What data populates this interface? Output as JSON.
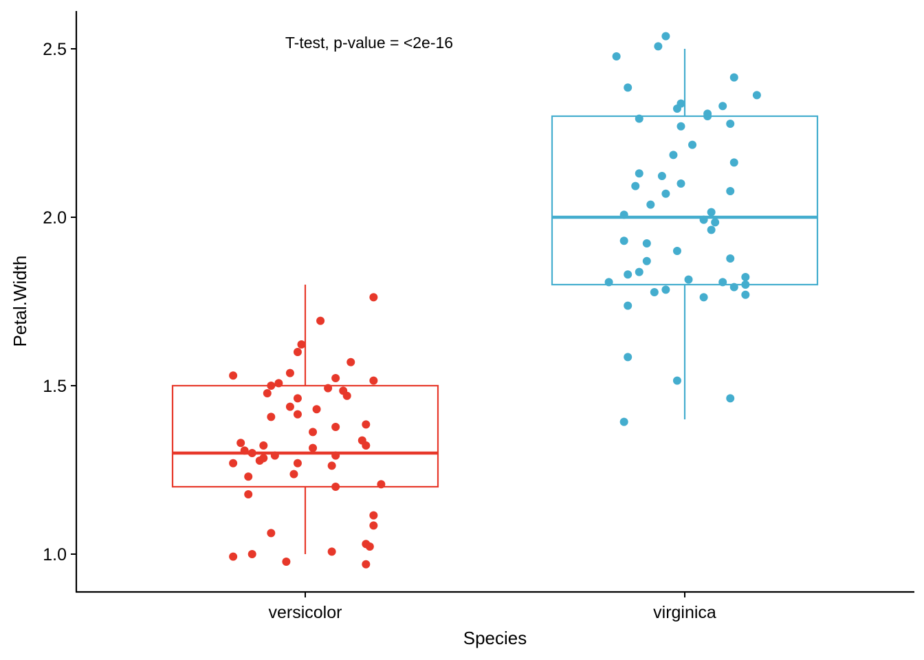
{
  "chart_data": {
    "type": "box",
    "title": "",
    "xlabel": "Species",
    "ylabel": "Petal.Width",
    "categories": [
      "versicolor",
      "virginica"
    ],
    "ylim": [
      0.9,
      2.6
    ],
    "yticks": [
      1.0,
      1.5,
      2.0,
      2.5
    ],
    "ytick_labels": [
      "1.0",
      "1.5",
      "2.0",
      "2.5"
    ],
    "grid": false,
    "legend": "none",
    "annotation": "T-test, p-value = <2e-16",
    "series": [
      {
        "category": "versicolor",
        "color": "#E7382A",
        "box": {
          "min": 1.0,
          "q1": 1.2,
          "median": 1.3,
          "q3": 1.5,
          "max": 1.8
        },
        "points": [
          {
            "jitter": 0.18,
            "y": 1.8
          },
          {
            "jitter": 0.04,
            "y": 1.7
          },
          {
            "jitter": -0.01,
            "y": 1.6
          },
          {
            "jitter": 0.12,
            "y": 1.6
          },
          {
            "jitter": -0.02,
            "y": 1.6
          },
          {
            "jitter": -0.19,
            "y": 1.5
          },
          {
            "jitter": -0.1,
            "y": 1.5
          },
          {
            "jitter": -0.07,
            "y": 1.5
          },
          {
            "jitter": -0.04,
            "y": 1.5
          },
          {
            "jitter": 0.1,
            "y": 1.5
          },
          {
            "jitter": 0.18,
            "y": 1.5
          },
          {
            "jitter": -0.02,
            "y": 1.5
          },
          {
            "jitter": 0.06,
            "y": 1.5
          },
          {
            "jitter": 0.08,
            "y": 1.5
          },
          {
            "jitter": 0.11,
            "y": 1.5
          },
          {
            "jitter": -0.09,
            "y": 1.5
          },
          {
            "jitter": 0.03,
            "y": 1.4
          },
          {
            "jitter": 0.08,
            "y": 1.4
          },
          {
            "jitter": -0.09,
            "y": 1.4
          },
          {
            "jitter": -0.04,
            "y": 1.4
          },
          {
            "jitter": 0.16,
            "y": 1.4
          },
          {
            "jitter": -0.02,
            "y": 1.4
          },
          {
            "jitter": 0.02,
            "y": 1.4
          },
          {
            "jitter": -0.08,
            "y": 1.3
          },
          {
            "jitter": 0.16,
            "y": 1.3
          },
          {
            "jitter": -0.19,
            "y": 1.3
          },
          {
            "jitter": -0.14,
            "y": 1.3
          },
          {
            "jitter": -0.17,
            "y": 1.3
          },
          {
            "jitter": -0.12,
            "y": 1.3
          },
          {
            "jitter": -0.16,
            "y": 1.3
          },
          {
            "jitter": 0.15,
            "y": 1.3
          },
          {
            "jitter": -0.11,
            "y": 1.3
          },
          {
            "jitter": 0.02,
            "y": 1.3
          },
          {
            "jitter": 0.07,
            "y": 1.3
          },
          {
            "jitter": 0.08,
            "y": 1.3
          },
          {
            "jitter": -0.11,
            "y": 1.3
          },
          {
            "jitter": -0.02,
            "y": 1.3
          },
          {
            "jitter": 0.08,
            "y": 1.2
          },
          {
            "jitter": -0.15,
            "y": 1.2
          },
          {
            "jitter": -0.15,
            "y": 1.2
          },
          {
            "jitter": 0.2,
            "y": 1.2
          },
          {
            "jitter": -0.03,
            "y": 1.2
          },
          {
            "jitter": 0.18,
            "y": 1.1
          },
          {
            "jitter": 0.18,
            "y": 1.1
          },
          {
            "jitter": -0.09,
            "y": 1.1
          },
          {
            "jitter": -0.19,
            "y": 1.0
          },
          {
            "jitter": 0.17,
            "y": 1.0
          },
          {
            "jitter": 0.16,
            "y": 1.0
          },
          {
            "jitter": -0.14,
            "y": 1.0
          },
          {
            "jitter": 0.16,
            "y": 1.0
          },
          {
            "jitter": -0.05,
            "y": 1.0
          },
          {
            "jitter": 0.07,
            "y": 1.0
          }
        ]
      },
      {
        "category": "virginica",
        "color": "#44ADCE",
        "box": {
          "min": 1.4,
          "q1": 1.8,
          "median": 2.0,
          "q3": 2.3,
          "max": 2.5
        },
        "points": [
          {
            "jitter": -0.18,
            "y": 2.5
          },
          {
            "jitter": -0.07,
            "y": 2.5
          },
          {
            "jitter": -0.05,
            "y": 2.5
          },
          {
            "jitter": -0.15,
            "y": 2.4
          },
          {
            "jitter": 0.13,
            "y": 2.4
          },
          {
            "jitter": 0.19,
            "y": 2.4
          },
          {
            "jitter": -0.12,
            "y": 2.3
          },
          {
            "jitter": -0.02,
            "y": 2.3
          },
          {
            "jitter": -0.01,
            "y": 2.3
          },
          {
            "jitter": 0.06,
            "y": 2.3
          },
          {
            "jitter": 0.1,
            "y": 2.3
          },
          {
            "jitter": 0.12,
            "y": 2.3
          },
          {
            "jitter": 0.06,
            "y": 2.3
          },
          {
            "jitter": -0.01,
            "y": 2.3
          },
          {
            "jitter": -0.03,
            "y": 2.2
          },
          {
            "jitter": 0.02,
            "y": 2.2
          },
          {
            "jitter": 0.13,
            "y": 2.2
          },
          {
            "jitter": -0.13,
            "y": 2.1
          },
          {
            "jitter": -0.06,
            "y": 2.1
          },
          {
            "jitter": -0.05,
            "y": 2.1
          },
          {
            "jitter": -0.01,
            "y": 2.1
          },
          {
            "jitter": -0.12,
            "y": 2.1
          },
          {
            "jitter": 0.12,
            "y": 2.1
          },
          {
            "jitter": -0.16,
            "y": 2.0
          },
          {
            "jitter": -0.09,
            "y": 2.0
          },
          {
            "jitter": 0.08,
            "y": 2.0
          },
          {
            "jitter": 0.07,
            "y": 2.0
          },
          {
            "jitter": 0.07,
            "y": 2.0
          },
          {
            "jitter": 0.05,
            "y": 2.0
          },
          {
            "jitter": -0.1,
            "y": 1.9
          },
          {
            "jitter": -0.1,
            "y": 1.9
          },
          {
            "jitter": -0.02,
            "y": 1.9
          },
          {
            "jitter": -0.16,
            "y": 1.9
          },
          {
            "jitter": 0.12,
            "y": 1.9
          },
          {
            "jitter": -0.2,
            "y": 1.8
          },
          {
            "jitter": -0.12,
            "y": 1.8
          },
          {
            "jitter": -0.05,
            "y": 1.8
          },
          {
            "jitter": 0.01,
            "y": 1.8
          },
          {
            "jitter": 0.05,
            "y": 1.8
          },
          {
            "jitter": 0.13,
            "y": 1.8
          },
          {
            "jitter": 0.16,
            "y": 1.8
          },
          {
            "jitter": 0.16,
            "y": 1.8
          },
          {
            "jitter": 0.16,
            "y": 1.8
          },
          {
            "jitter": -0.15,
            "y": 1.8
          },
          {
            "jitter": -0.08,
            "y": 1.8
          },
          {
            "jitter": 0.1,
            "y": 1.8
          },
          {
            "jitter": -0.15,
            "y": 1.7
          },
          {
            "jitter": -0.15,
            "y": 1.6
          },
          {
            "jitter": -0.02,
            "y": 1.5
          },
          {
            "jitter": 0.12,
            "y": 1.5
          },
          {
            "jitter": -0.16,
            "y": 1.4
          }
        ]
      }
    ]
  }
}
